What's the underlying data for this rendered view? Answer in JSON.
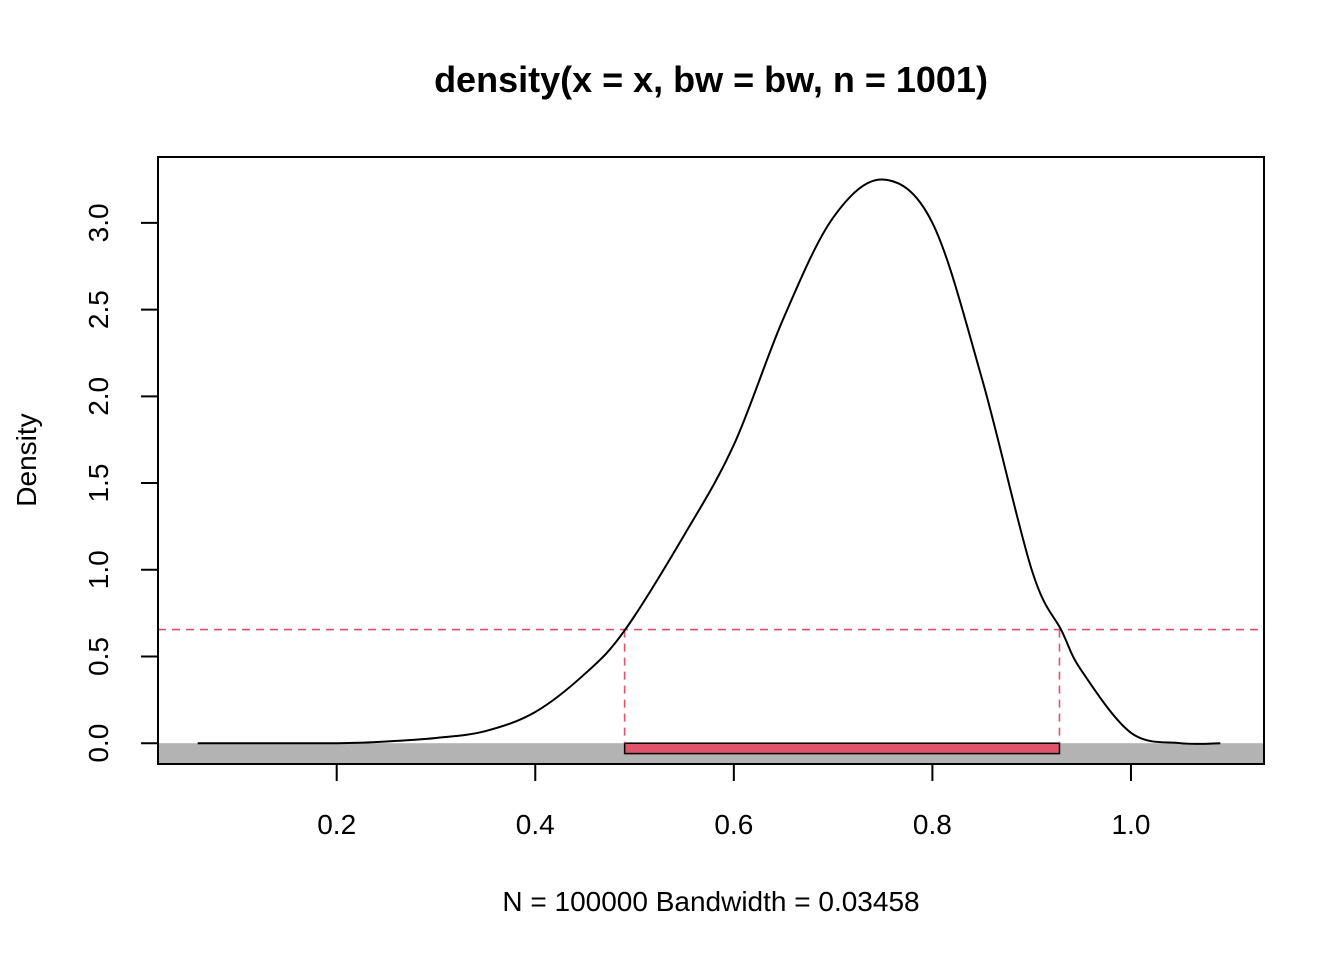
{
  "chart_data": {
    "type": "area",
    "title": "density(x = x, bw = bw, n = 1001)",
    "xlabel": "N = 100000   Bandwidth = 0.03458",
    "ylabel": "Density",
    "xlim": [
      0.02,
      1.134
    ],
    "ylim": [
      -0.12,
      3.38
    ],
    "x_ticks": [
      0.2,
      0.4,
      0.6,
      0.8,
      1.0
    ],
    "x_tick_labels": [
      "0.2",
      "0.4",
      "0.6",
      "0.8",
      "1.0"
    ],
    "y_ticks": [
      0.0,
      0.5,
      1.0,
      1.5,
      2.0,
      2.5,
      3.0
    ],
    "y_tick_labels": [
      "0.0",
      "0.5",
      "1.0",
      "1.5",
      "2.0",
      "2.5",
      "3.0"
    ],
    "series": [
      {
        "name": "density",
        "x": [
          0.06,
          0.2,
          0.25,
          0.3,
          0.35,
          0.4,
          0.45,
          0.49,
          0.55,
          0.6,
          0.65,
          0.7,
          0.75,
          0.8,
          0.85,
          0.9,
          0.93,
          0.95,
          1.0,
          1.05,
          1.09
        ],
        "y": [
          0.0,
          0.0,
          0.01,
          0.03,
          0.07,
          0.18,
          0.4,
          0.65,
          1.2,
          1.72,
          2.45,
          3.03,
          3.25,
          3.0,
          2.1,
          1.0,
          0.65,
          0.42,
          0.06,
          0.0,
          0.0
        ]
      }
    ],
    "threshold": {
      "y": 0.655,
      "x_left": 0.49,
      "x_right": 0.928
    },
    "interval": {
      "x_start": 0.49,
      "x_end": 0.928,
      "y_top": 0.0,
      "y_bottom": -0.06
    },
    "band": {
      "y_top": 0.0
    },
    "colors": {
      "curve": "#000000",
      "threshold": "#DF536B",
      "interval_fill": "#DF536B",
      "band": "#B3B3B3",
      "frame": "#000000"
    }
  }
}
